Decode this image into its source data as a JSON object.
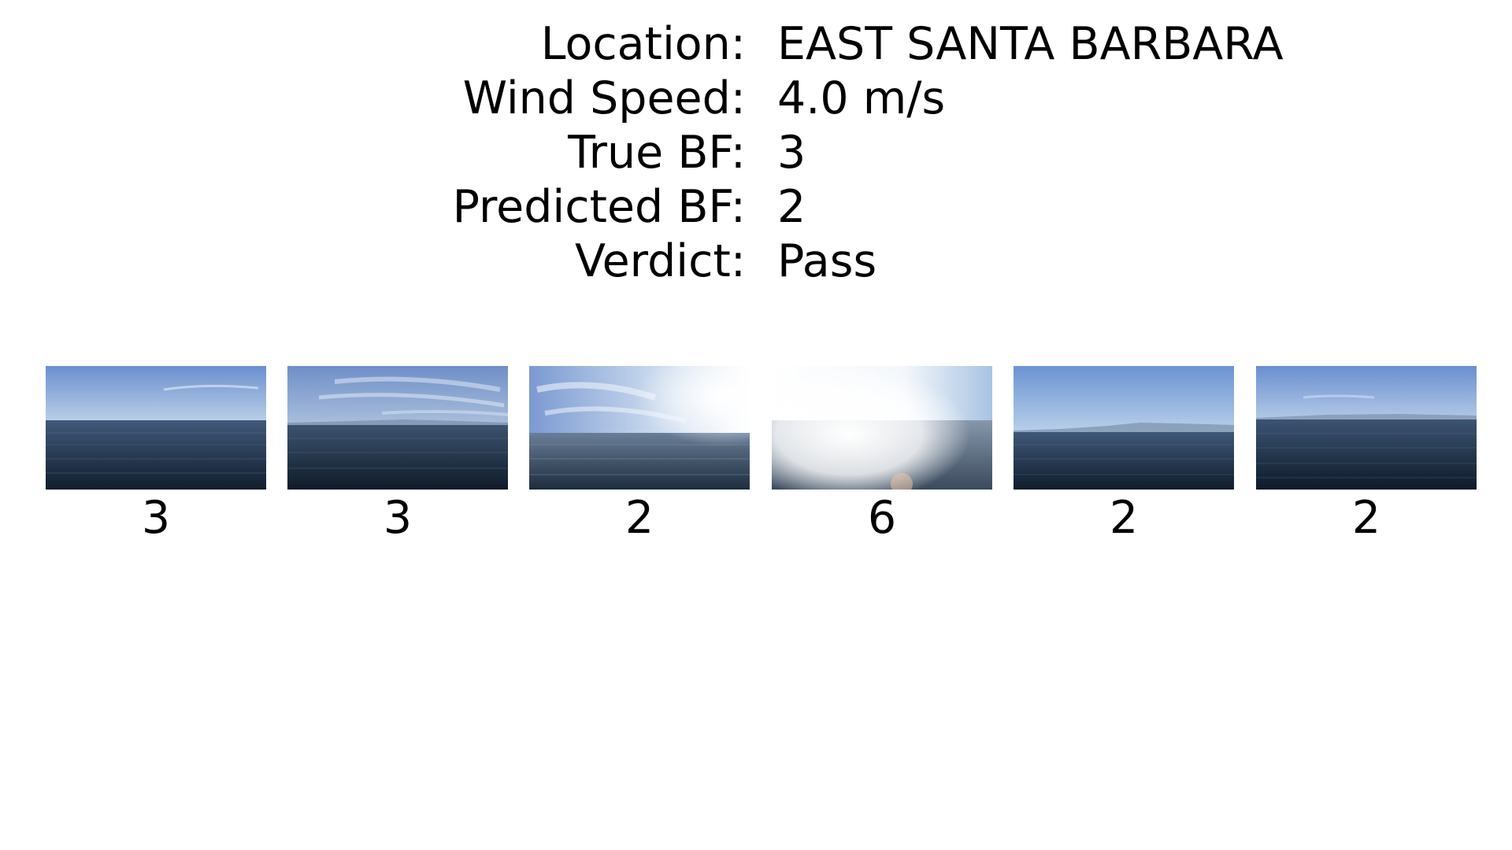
{
  "info": [
    {
      "label": "Location:",
      "value": "EAST SANTA BARBARA"
    },
    {
      "label": "Wind Speed:",
      "value": "4.0 m/s"
    },
    {
      "label": "True BF:",
      "value": "3"
    },
    {
      "label": "Predicted BF:",
      "value": "2"
    },
    {
      "label": "Verdict:",
      "value": "Pass"
    }
  ],
  "frames": [
    {
      "caption": "3"
    },
    {
      "caption": "3"
    },
    {
      "caption": "2"
    },
    {
      "caption": "6"
    },
    {
      "caption": "2"
    },
    {
      "caption": "2"
    }
  ],
  "colors": {
    "sky_top": "#6f93cf",
    "sky_bottom": "#b7cde6",
    "sea_top": "#3e5673",
    "sea_bottom": "#0f1d2b"
  }
}
